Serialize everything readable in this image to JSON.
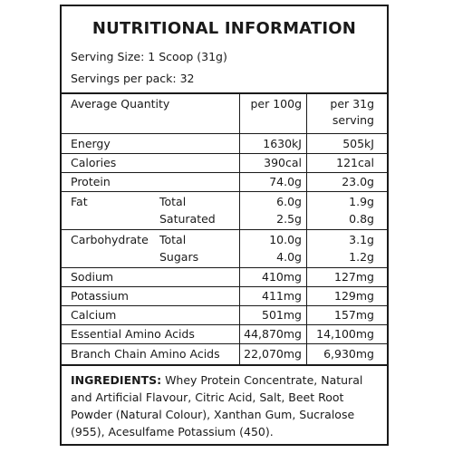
{
  "title": "NUTRITIONAL INFORMATION",
  "serving_size": "Serving Size: 1 Scoop (31g)",
  "servings_per_pack": "Servings per pack: 32",
  "table": {
    "headers": {
      "quantity": "Average Quantity",
      "per100": "per 100g",
      "perServing_line1": "per 31g",
      "perServing_line2": "serving"
    },
    "rows": [
      {
        "label": "Energy",
        "sub": "",
        "per100": "1630kJ",
        "perServing": "505kJ"
      },
      {
        "label": "Calories",
        "sub": "",
        "per100": "390cal",
        "perServing": "121cal"
      },
      {
        "label": "Protein",
        "sub": "",
        "per100": "74.0g",
        "perServing": "23.0g"
      },
      {
        "label": "Fat",
        "sub": "Total",
        "per100": "6.0g",
        "perServing": "1.9g"
      },
      {
        "label": "",
        "sub": "Saturated",
        "per100": "2.5g",
        "perServing": "0.8g"
      },
      {
        "label": "Carbohydrate",
        "sub": "Total",
        "per100": "10.0g",
        "perServing": "3.1g"
      },
      {
        "label": "",
        "sub": "Sugars",
        "per100": "4.0g",
        "perServing": "1.2g"
      },
      {
        "label": "Sodium",
        "sub": "",
        "per100": "410mg",
        "perServing": "127mg"
      },
      {
        "label": "Potassium",
        "sub": "",
        "per100": "411mg",
        "perServing": "129mg"
      },
      {
        "label": "Calcium",
        "sub": "",
        "per100": "501mg",
        "perServing": "157mg"
      },
      {
        "label": "Essential Amino Acids",
        "sub": "",
        "per100": "44,870mg",
        "perServing": "14,100mg"
      },
      {
        "label": "Branch Chain Amino Acids",
        "sub": "",
        "per100": "22,070mg",
        "perServing": "6,930mg"
      }
    ]
  },
  "ingredients": {
    "heading": "INGREDIENTS:",
    "text": " Whey Protein Concentrate, Natural and Artificial Flavour, Citric Acid, Salt, Beet Root Powder (Natural Colour), Xanthan Gum, Sucralose (955), Acesulfame Potassium (450)."
  }
}
